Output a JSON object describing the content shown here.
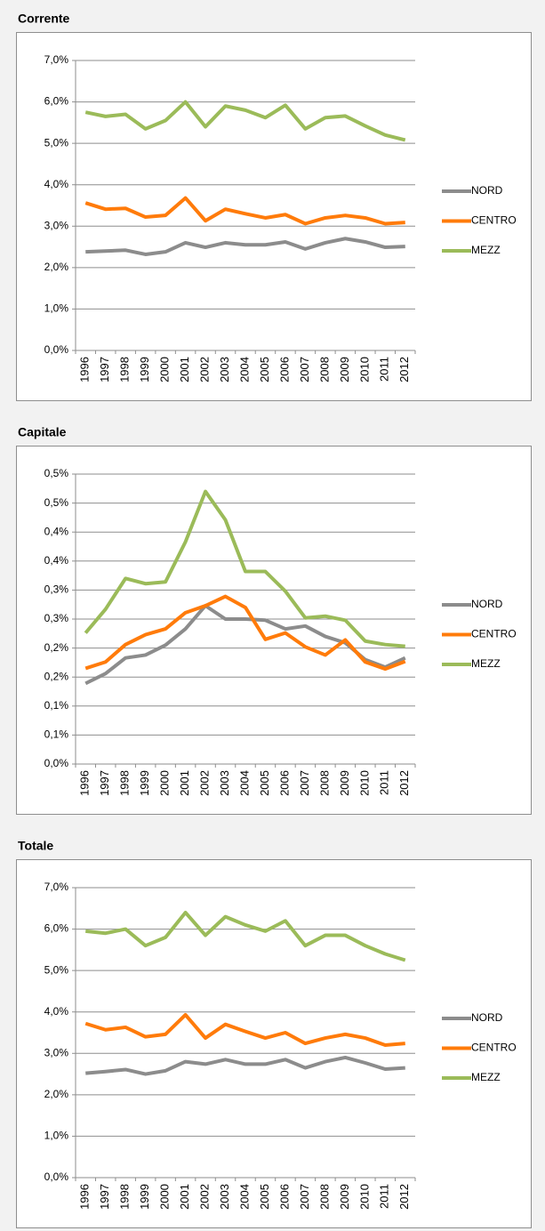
{
  "chart_data": [
    {
      "type": "line",
      "title": "Corrente",
      "categories": [
        "1996",
        "1997",
        "1998",
        "1999",
        "2000",
        "2001",
        "2002",
        "2003",
        "2004",
        "2005",
        "2006",
        "2007",
        "2008",
        "2009",
        "2010",
        "2011",
        "2012"
      ],
      "ylim": [
        0,
        7
      ],
      "yticks": [
        {
          "value": 0,
          "label": "0,0%"
        },
        {
          "value": 1,
          "label": "1,0%"
        },
        {
          "value": 2,
          "label": "2,0%"
        },
        {
          "value": 3,
          "label": "3,0%"
        },
        {
          "value": 4,
          "label": "4,0%"
        },
        {
          "value": 5,
          "label": "5,0%"
        },
        {
          "value": 6,
          "label": "6,0%"
        },
        {
          "value": 7,
          "label": "7,0%"
        }
      ],
      "grid": true,
      "legend": "right",
      "series": [
        {
          "name": "NORD",
          "color": "#8c8c8c",
          "values": [
            2.38,
            2.4,
            2.42,
            2.32,
            2.38,
            2.6,
            2.49,
            2.6,
            2.55,
            2.55,
            2.62,
            2.45,
            2.6,
            2.7,
            2.62,
            2.49,
            2.51
          ]
        },
        {
          "name": "CENTRO",
          "color": "#ff7b0a",
          "values": [
            3.56,
            3.41,
            3.43,
            3.22,
            3.26,
            3.68,
            3.13,
            3.41,
            3.3,
            3.2,
            3.28,
            3.06,
            3.2,
            3.26,
            3.2,
            3.06,
            3.09
          ]
        },
        {
          "name": "MEZZ",
          "color": "#9bbb59",
          "values": [
            5.75,
            5.65,
            5.7,
            5.35,
            5.55,
            6.0,
            5.4,
            5.9,
            5.8,
            5.62,
            5.92,
            5.35,
            5.62,
            5.66,
            5.42,
            5.2,
            5.08
          ]
        }
      ]
    },
    {
      "type": "line",
      "title": "Capitale",
      "categories": [
        "1996",
        "1997",
        "1998",
        "1999",
        "2000",
        "2001",
        "2002",
        "2003",
        "2004",
        "2005",
        "2006",
        "2007",
        "2008",
        "2009",
        "2010",
        "2011",
        "2012"
      ],
      "ylim": [
        0,
        0.5
      ],
      "yticks": [
        {
          "value": 0,
          "label": "0,0%"
        },
        {
          "value": 0.05,
          "label": "0,1%"
        },
        {
          "value": 0.1,
          "label": "0,1%"
        },
        {
          "value": 0.15,
          "label": "0,2%"
        },
        {
          "value": 0.2,
          "label": "0,2%"
        },
        {
          "value": 0.25,
          "label": "0,3%"
        },
        {
          "value": 0.3,
          "label": "0,3%"
        },
        {
          "value": 0.35,
          "label": "0,4%"
        },
        {
          "value": 0.4,
          "label": "0,4%"
        },
        {
          "value": 0.45,
          "label": "0,5%"
        },
        {
          "value": 0.5,
          "label": "0,5%"
        }
      ],
      "grid": true,
      "legend": "right",
      "series": [
        {
          "name": "NORD",
          "color": "#8c8c8c",
          "values": [
            0.139,
            0.156,
            0.183,
            0.188,
            0.205,
            0.233,
            0.273,
            0.25,
            0.25,
            0.248,
            0.233,
            0.238,
            0.22,
            0.209,
            0.18,
            0.167,
            0.183
          ]
        },
        {
          "name": "CENTRO",
          "color": "#ff7b0a",
          "values": [
            0.165,
            0.176,
            0.206,
            0.223,
            0.233,
            0.261,
            0.273,
            0.289,
            0.27,
            0.215,
            0.226,
            0.202,
            0.188,
            0.214,
            0.176,
            0.164,
            0.177
          ]
        },
        {
          "name": "MEZZ",
          "color": "#9bbb59",
          "values": [
            0.226,
            0.267,
            0.32,
            0.311,
            0.314,
            0.383,
            0.47,
            0.421,
            0.332,
            0.332,
            0.298,
            0.252,
            0.255,
            0.248,
            0.212,
            0.206,
            0.203
          ]
        }
      ]
    },
    {
      "type": "line",
      "title": "Totale",
      "categories": [
        "1996",
        "1997",
        "1998",
        "1999",
        "2000",
        "2001",
        "2002",
        "2003",
        "2004",
        "2005",
        "2006",
        "2007",
        "2008",
        "2009",
        "2010",
        "2011",
        "2012"
      ],
      "ylim": [
        0,
        7
      ],
      "yticks": [
        {
          "value": 0,
          "label": "0,0%"
        },
        {
          "value": 1,
          "label": "1,0%"
        },
        {
          "value": 2,
          "label": "2,0%"
        },
        {
          "value": 3,
          "label": "3,0%"
        },
        {
          "value": 4,
          "label": "4,0%"
        },
        {
          "value": 5,
          "label": "5,0%"
        },
        {
          "value": 6,
          "label": "6,0%"
        },
        {
          "value": 7,
          "label": "7,0%"
        }
      ],
      "grid": true,
      "legend": "right",
      "series": [
        {
          "name": "NORD",
          "color": "#8c8c8c",
          "values": [
            2.52,
            2.56,
            2.61,
            2.5,
            2.58,
            2.8,
            2.74,
            2.85,
            2.74,
            2.74,
            2.85,
            2.65,
            2.8,
            2.9,
            2.77,
            2.62,
            2.65
          ]
        },
        {
          "name": "CENTRO",
          "color": "#ff7b0a",
          "values": [
            3.72,
            3.57,
            3.63,
            3.4,
            3.46,
            3.93,
            3.37,
            3.7,
            3.53,
            3.37,
            3.5,
            3.24,
            3.37,
            3.46,
            3.37,
            3.2,
            3.24
          ]
        },
        {
          "name": "MEZZ",
          "color": "#9bbb59",
          "values": [
            5.95,
            5.9,
            6.0,
            5.6,
            5.8,
            6.4,
            5.85,
            6.3,
            6.1,
            5.95,
            6.2,
            5.6,
            5.85,
            5.85,
            5.6,
            5.4,
            5.25
          ]
        }
      ]
    }
  ]
}
